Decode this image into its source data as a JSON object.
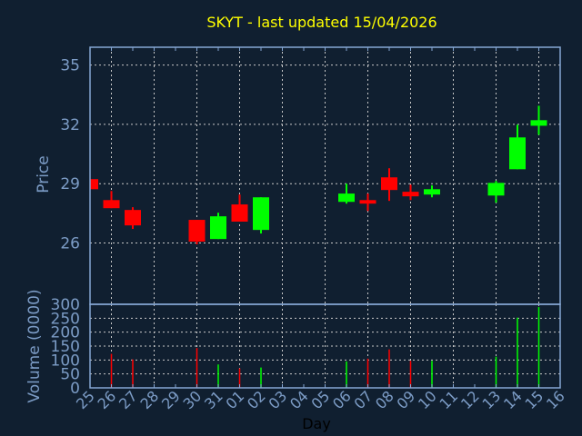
{
  "chart_data": [
    {
      "type": "candlestick",
      "title": "SKYT - last updated 15/04/2026",
      "ylabel": "Price",
      "ylim": [
        22.9,
        35.9
      ],
      "yticks": [
        26,
        29,
        32,
        35
      ],
      "grid": true,
      "colors": {
        "up": "#00ff00",
        "down": "#ff0000",
        "title": "#ffff00",
        "axis": "#7c9cc6",
        "background": "#101f30"
      },
      "x": [
        "25",
        "26",
        "27",
        "28",
        "29",
        "30",
        "31",
        "01",
        "02",
        "03",
        "04",
        "05",
        "06",
        "07",
        "08",
        "09",
        "10",
        "11",
        "12",
        "13",
        "14",
        "15",
        "16"
      ],
      "candles": [
        {
          "day": "25",
          "open": 29.23,
          "high": 29.23,
          "low": 28.72,
          "close": 28.72
        },
        {
          "day": "26",
          "open": 28.17,
          "high": 28.63,
          "low": 27.76,
          "close": 27.76
        },
        {
          "day": "27",
          "open": 27.67,
          "high": 27.81,
          "low": 26.71,
          "close": 26.89
        },
        {
          "day": "30",
          "open": 27.17,
          "high": 27.17,
          "low": 25.93,
          "close": 26.07
        },
        {
          "day": "31",
          "open": 26.2,
          "high": 27.53,
          "low": 26.2,
          "close": 27.35
        },
        {
          "day": "01",
          "open": 27.95,
          "high": 28.45,
          "low": 27.08,
          "close": 27.08
        },
        {
          "day": "02",
          "open": 26.66,
          "high": 28.31,
          "low": 26.48,
          "close": 28.31
        },
        {
          "day": "06",
          "open": 28.08,
          "high": 29.0,
          "low": 27.99,
          "close": 28.5
        },
        {
          "day": "07",
          "open": 28.17,
          "high": 28.5,
          "low": 27.62,
          "close": 27.99
        },
        {
          "day": "08",
          "open": 29.32,
          "high": 29.78,
          "low": 28.13,
          "close": 28.68
        },
        {
          "day": "09",
          "open": 28.59,
          "high": 28.95,
          "low": 28.17,
          "close": 28.36
        },
        {
          "day": "10",
          "open": 28.45,
          "high": 28.91,
          "low": 28.31,
          "close": 28.72
        },
        {
          "day": "13",
          "open": 28.4,
          "high": 29.14,
          "low": 28.04,
          "close": 29.04
        },
        {
          "day": "14",
          "open": 29.73,
          "high": 31.98,
          "low": 29.73,
          "close": 31.34
        },
        {
          "day": "15",
          "open": 31.93,
          "high": 32.94,
          "low": 31.47,
          "close": 32.21
        }
      ]
    },
    {
      "type": "bar",
      "ylabel": "Volume (0000)",
      "xlabel": "Day",
      "ylim": [
        0,
        300
      ],
      "yticks": [
        0,
        50,
        100,
        150,
        200,
        250,
        300
      ],
      "grid": true,
      "bars": [
        {
          "day": "26",
          "value": 122,
          "dir": "down"
        },
        {
          "day": "27",
          "value": 102,
          "dir": "down"
        },
        {
          "day": "30",
          "value": 143,
          "dir": "down"
        },
        {
          "day": "31",
          "value": 84,
          "dir": "up"
        },
        {
          "day": "01",
          "value": 70,
          "dir": "down"
        },
        {
          "day": "02",
          "value": 73,
          "dir": "up"
        },
        {
          "day": "06",
          "value": 95,
          "dir": "up"
        },
        {
          "day": "07",
          "value": 105,
          "dir": "down"
        },
        {
          "day": "08",
          "value": 138,
          "dir": "down"
        },
        {
          "day": "09",
          "value": 97,
          "dir": "down"
        },
        {
          "day": "10",
          "value": 97,
          "dir": "up"
        },
        {
          "day": "13",
          "value": 112,
          "dir": "up"
        },
        {
          "day": "14",
          "value": 252,
          "dir": "up"
        },
        {
          "day": "15",
          "value": 290,
          "dir": "up"
        }
      ]
    }
  ]
}
